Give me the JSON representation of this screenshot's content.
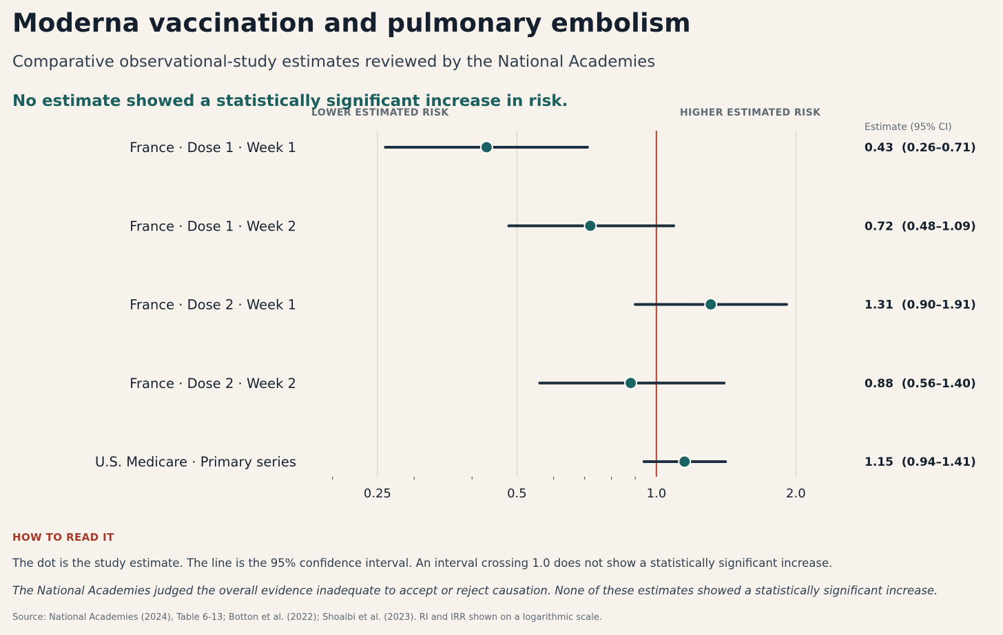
{
  "header": {
    "title": "Moderna vaccination and pulmonary embolism",
    "subtitle": "Comparative observational-study estimates reviewed by the National Academies",
    "takeaway": "No estimate showed a statistically significant increase in risk."
  },
  "chart_data": {
    "type": "forest",
    "scale": "log",
    "xlim": [
      0.18,
      2.6
    ],
    "xticks": [
      0.25,
      0.5,
      1.0,
      2.0
    ],
    "xtick_labels": [
      "0.25",
      "0.5",
      "1.0",
      "2.0"
    ],
    "reference_value": 1.0,
    "direction_labels": {
      "lower": "LOWER ESTIMATED RISK",
      "higher": "HIGHER ESTIMATED RISK"
    },
    "estimate_header": "Estimate (95% CI)",
    "rows": [
      {
        "label": "France · Dose 1 · Week 1",
        "estimate": 0.43,
        "lower": 0.26,
        "upper": 0.71,
        "text": "0.43  (0.26–0.71)"
      },
      {
        "label": "France · Dose 1 · Week 2",
        "estimate": 0.72,
        "lower": 0.48,
        "upper": 1.09,
        "text": "0.72  (0.48–1.09)"
      },
      {
        "label": "France · Dose 2 · Week 1",
        "estimate": 1.31,
        "lower": 0.9,
        "upper": 1.91,
        "text": "1.31  (0.90–1.91)"
      },
      {
        "label": "France · Dose 2 · Week 2",
        "estimate": 0.88,
        "lower": 0.56,
        "upper": 1.4,
        "text": "0.88  (0.56–1.40)"
      },
      {
        "label": "U.S. Medicare · Primary series",
        "estimate": 1.15,
        "lower": 0.94,
        "upper": 1.41,
        "text": "1.15  (0.94–1.41)"
      }
    ],
    "colors": {
      "point": "#1b6363",
      "interval": "#1e2f3f",
      "reference": "#b8503f",
      "grid": "#d8d3cb",
      "label": "#15202e",
      "muted": "#5f6a75"
    }
  },
  "footer": {
    "how_title": "HOW TO READ IT",
    "how_text": "The dot is the study estimate. The line is the 95% confidence interval. An interval crossing 1.0 does not show a statistically significant increase.",
    "note": "The National Academies judged the overall evidence inadequate to accept or reject causation. None of these estimates showed a statistically significant increase.",
    "source": "Source: National Academies (2024), Table 6-13; Botton et al. (2022); Shoaibi et al. (2023). RI and IRR shown on a logarithmic scale."
  }
}
